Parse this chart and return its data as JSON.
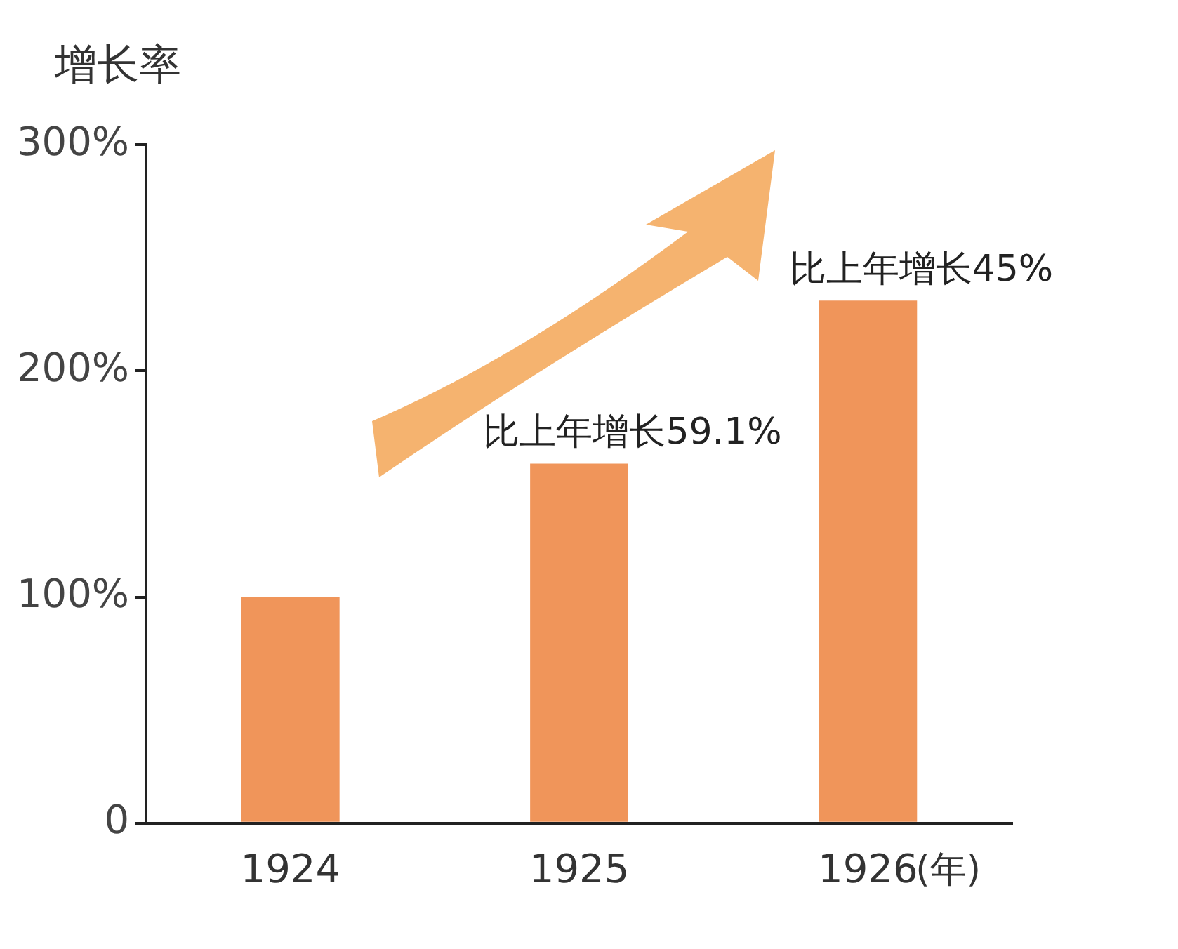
{
  "chart_data": {
    "type": "bar",
    "ylabel": "增长率",
    "xlabel": "(年)",
    "categories": [
      "1924",
      "1925",
      "1926"
    ],
    "values": [
      100,
      159,
      231
    ],
    "color": "#f0955a",
    "ylim": [
      0,
      300
    ],
    "yticks": [
      0,
      {
        "value": 100,
        "label": "100%"
      },
      {
        "value": 200,
        "label": "200%"
      },
      {
        "value": 300,
        "label": "300%"
      }
    ],
    "grid": false,
    "annotations": [
      {
        "text": "比上年增长59.1%",
        "x": "1925",
        "y": 159
      },
      {
        "text": "比上年增长45%",
        "x": "1926",
        "y": 231
      }
    ]
  }
}
